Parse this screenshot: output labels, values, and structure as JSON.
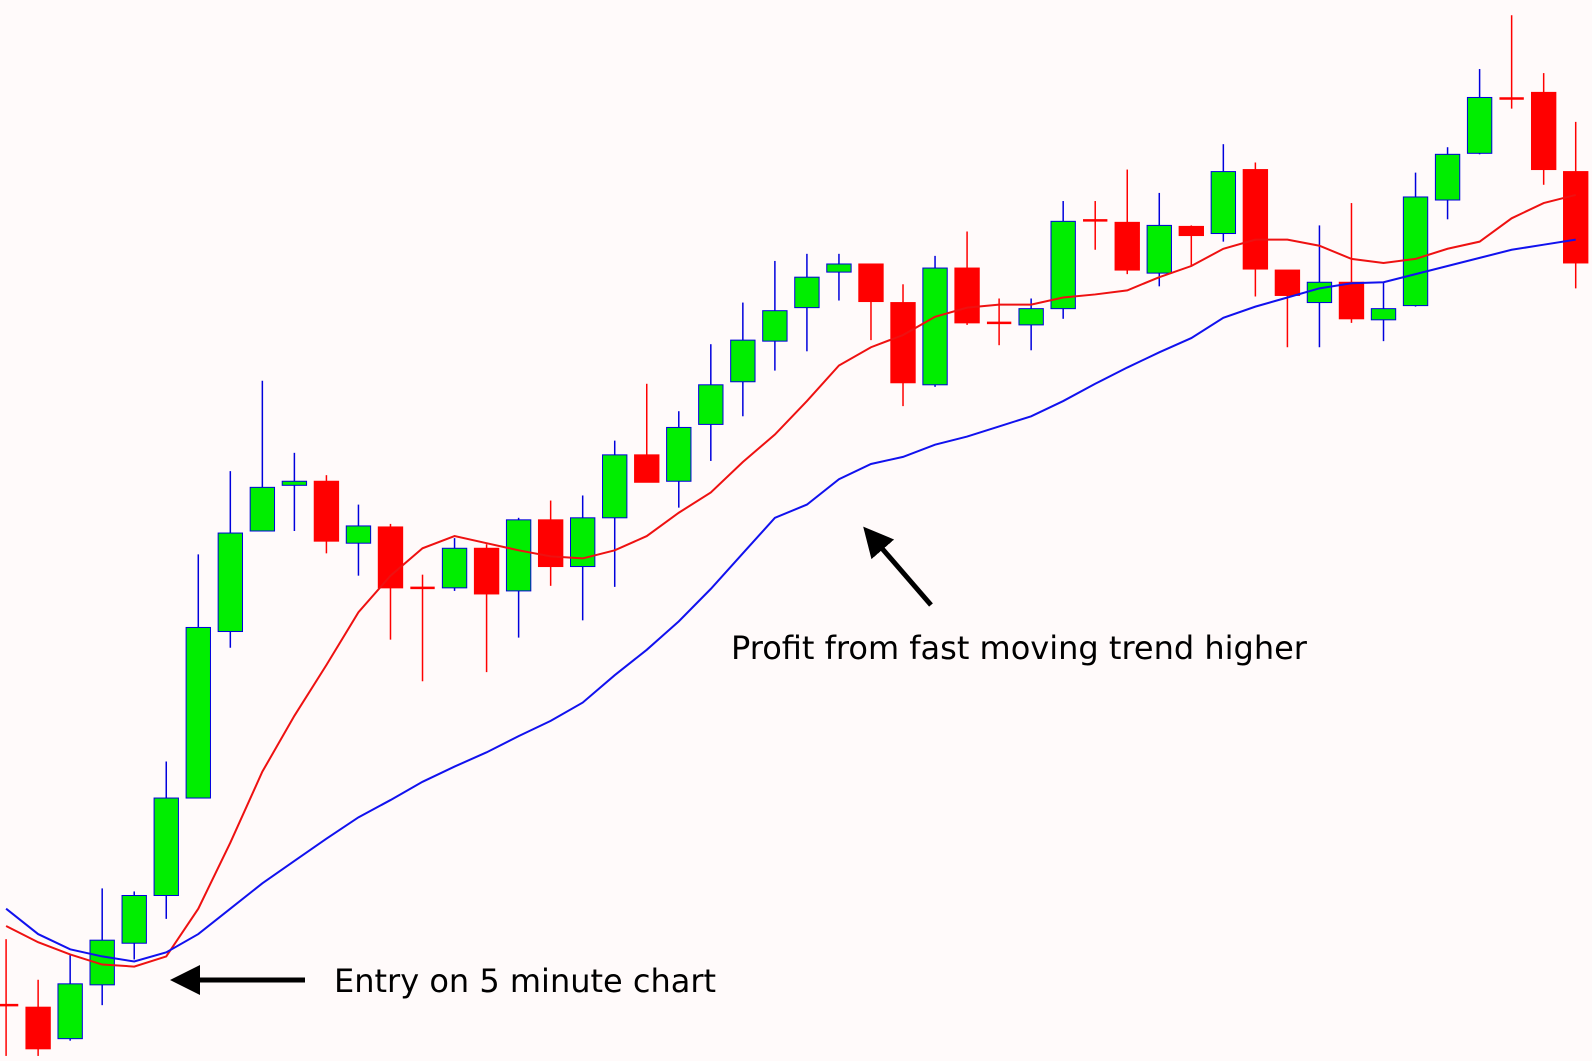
{
  "chart_data": {
    "type": "candlestick",
    "categories": [
      null,
      null,
      null,
      null,
      null,
      null,
      null,
      null,
      null,
      null,
      null,
      null,
      null,
      null,
      null,
      null,
      null,
      null,
      null,
      null,
      null,
      null,
      null,
      null,
      null,
      null,
      null,
      null,
      null,
      null,
      null,
      null,
      null,
      null,
      null,
      null,
      null,
      null,
      null,
      null,
      null,
      null,
      null,
      null,
      null,
      null,
      null,
      null,
      null,
      null
    ],
    "open": [
      55,
      53,
      22,
      75,
      116,
      163,
      259,
      423,
      522,
      567,
      571,
      510,
      526,
      466,
      466,
      505,
      463,
      533,
      487,
      535,
      597,
      571,
      627,
      669,
      709,
      742,
      777,
      785,
      747,
      666,
      781,
      727,
      725,
      741,
      828,
      826,
      776,
      822,
      815,
      878,
      779,
      747,
      767,
      730,
      744,
      848,
      894,
      948,
      954,
      876
    ],
    "high": [
      120,
      80,
      105,
      170,
      167,
      295,
      499,
      581,
      670,
      599,
      577,
      548,
      529,
      479,
      515,
      509,
      535,
      552,
      557,
      611,
      667,
      640,
      706,
      747,
      788,
      795,
      795,
      785,
      765,
      793,
      817,
      751,
      751,
      847,
      847,
      878,
      855,
      823,
      903,
      885,
      779,
      823,
      845,
      767,
      875,
      900,
      977,
      1030,
      973,
      925
    ],
    "low": [
      5,
      5,
      20,
      55,
      100,
      140,
      259,
      407,
      522,
      522,
      500,
      478,
      415,
      374,
      463,
      383,
      417,
      468,
      434,
      467,
      570,
      545,
      591,
      635,
      680,
      699,
      749,
      710,
      645,
      664,
      725,
      705,
      700,
      731,
      799,
      775,
      763,
      783,
      807,
      753,
      703,
      703,
      727,
      709,
      743,
      829,
      893,
      938,
      863,
      761
    ],
    "close": [
      55,
      12,
      76,
      119,
      163,
      259,
      427,
      520,
      565,
      571,
      512,
      527,
      466,
      466,
      505,
      460,
      533,
      487,
      535,
      597,
      570,
      624,
      666,
      710,
      739,
      772,
      785,
      748,
      668,
      781,
      727,
      727,
      741,
      827,
      828,
      779,
      823,
      813,
      876,
      780,
      754,
      767,
      731,
      741,
      851,
      893,
      949,
      948,
      878,
      786
    ],
    "up_color": "#00ee00",
    "down_color": "#ff0000",
    "up_wick_color": "#0000dd",
    "down_wick_color": "#ff0000",
    "lines": [
      {
        "color": "#ee1111",
        "values": [
          133,
          117,
          105,
          95,
          93,
          103,
          150,
          215,
          285,
          340,
          390,
          442,
          478,
          505,
          517,
          510,
          503,
          497,
          495,
          503,
          517,
          540,
          560,
          590,
          617,
          650,
          685,
          703,
          715,
          733,
          742,
          745,
          745,
          752,
          755,
          759,
          772,
          783,
          800,
          809,
          809,
          803,
          790,
          786,
          790,
          800,
          807,
          830,
          845,
          853
        ]
      },
      {
        "color": "#1111ee",
        "values": [
          150,
          125,
          110,
          103,
          98,
          107,
          125,
          150,
          175,
          197,
          219,
          240,
          257,
          275,
          290,
          304,
          320,
          335,
          353,
          380,
          405,
          433,
          465,
          500,
          535,
          548,
          573,
          588,
          595,
          607,
          615,
          625,
          635,
          650,
          667,
          683,
          698,
          712,
          732,
          743,
          752,
          761,
          766,
          767,
          775,
          783,
          791,
          799,
          804,
          809
        ]
      }
    ],
    "ylim": [
      0,
      1045
    ],
    "annotations": [
      {
        "text": "Entry on 5 minute chart"
      },
      {
        "text": "Profit from fast moving trend higher"
      }
    ]
  }
}
